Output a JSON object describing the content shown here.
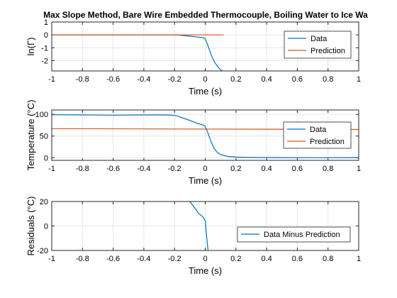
{
  "figure": {
    "title": "Max Slope Method, Bare Wire Embedded Thermocouple, Boiling Water to Ice Wa"
  },
  "chart_data": [
    {
      "type": "line",
      "title": "Max Slope Method, Bare Wire Embedded Thermocouple, Boiling Water to Ice Wa",
      "xlabel": "Time (s)",
      "ylabel": "ln(Γ)",
      "xlim": [
        -1,
        1
      ],
      "ylim": [
        -2.8,
        1
      ],
      "xticks": [
        "-1",
        "-0.8",
        "-0.6",
        "-0.4",
        "-0.2",
        "0",
        "0.2",
        "0.4",
        "0.6",
        "0.8",
        "1"
      ],
      "yticks": [
        {
          "value": 1,
          "label": "1"
        },
        {
          "value": 0,
          "label": "0"
        },
        {
          "value": -1,
          "label": "-1"
        },
        {
          "value": -2,
          "label": "-2"
        }
      ],
      "grid": true,
      "legend_position": "top-right",
      "series": [
        {
          "name": "Data",
          "color": "#0072BD",
          "x": [
            -1,
            -0.2,
            -0.18,
            -0.15,
            -0.1,
            -0.05,
            -0.01,
            0.0,
            0.02,
            0.04,
            0.06,
            0.08,
            0.1,
            0.12
          ],
          "y": [
            0,
            0,
            -0.01,
            -0.04,
            -0.1,
            -0.17,
            -0.22,
            -0.3,
            -0.9,
            -1.6,
            -2.1,
            -2.45,
            -2.7,
            -2.9
          ]
        },
        {
          "name": "Prediction",
          "color": "#D95319",
          "x": [
            -1,
            0.12
          ],
          "y": [
            0,
            0
          ]
        }
      ]
    },
    {
      "type": "line",
      "xlabel": "Time (s)",
      "ylabel": "Temperature (°C)",
      "xlim": [
        -1,
        1
      ],
      "ylim": [
        -6,
        110
      ],
      "xticks": [
        "-1",
        "-0.8",
        "-0.6",
        "-0.4",
        "-0.2",
        "0",
        "0.2",
        "0.4",
        "0.6",
        "0.8",
        "1"
      ],
      "yticks": [
        {
          "value": 100,
          "label": "100"
        },
        {
          "value": 50,
          "label": "50"
        },
        {
          "value": 0,
          "label": "0"
        }
      ],
      "grid": true,
      "legend_position": "top-right",
      "series": [
        {
          "name": "Data",
          "color": "#0072BD",
          "x": [
            -1,
            -0.8,
            -0.6,
            -0.4,
            -0.25,
            -0.2,
            -0.18,
            -0.15,
            -0.1,
            -0.05,
            -0.01,
            0.0,
            0.02,
            0.04,
            0.06,
            0.08,
            0.1,
            0.15,
            0.2,
            0.3,
            0.5,
            0.7,
            1.0
          ],
          "y": [
            99,
            98.5,
            98,
            98.5,
            98.5,
            97.5,
            96,
            92,
            86,
            79,
            75,
            72,
            55,
            35,
            20,
            12,
            7,
            3,
            1.5,
            0.7,
            0.3,
            0.2,
            0.3
          ]
        },
        {
          "name": "Prediction",
          "color": "#D95319",
          "x": [
            -1,
            1
          ],
          "y": [
            67,
            65
          ]
        }
      ]
    },
    {
      "type": "line",
      "xlabel": "Time (s)",
      "ylabel": "Residuals (°C)",
      "xlim": [
        -1,
        1
      ],
      "ylim": [
        -20,
        20
      ],
      "xticks": [
        "-1",
        "-0.8",
        "-0.6",
        "-0.4",
        "-0.2",
        "0",
        "0.2",
        "0.4",
        "0.6",
        "0.8",
        "1"
      ],
      "yticks": [
        {
          "value": 20,
          "label": "20"
        },
        {
          "value": 0,
          "label": "0"
        },
        {
          "value": -20,
          "label": "-20"
        }
      ],
      "grid": true,
      "legend_position": "lower-right",
      "series": [
        {
          "name": "Data Minus Prediction",
          "color": "#0072BD",
          "x": [
            -0.1,
            -0.07,
            -0.04,
            -0.02,
            -0.01,
            0.0,
            0.01,
            0.02
          ],
          "y": [
            20,
            15,
            10,
            8,
            6.5,
            4,
            -10,
            -22
          ]
        }
      ]
    }
  ]
}
